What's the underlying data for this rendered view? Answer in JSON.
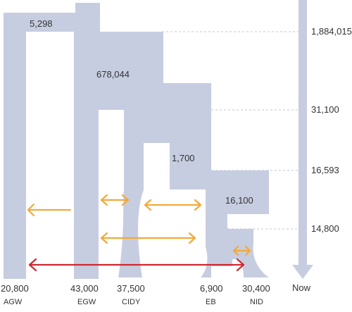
{
  "colors": {
    "tree": "#c7cde0",
    "migration": "#f2a93b",
    "recent": "#d0282e",
    "dashed": "#bfc6d9",
    "text": "#333333"
  },
  "inner_labels": {
    "root_ne": "5,298",
    "egw_ne": "678,044",
    "eb_nid_ne": "1,700",
    "nid_ne": "16,100"
  },
  "time_axis": {
    "labels": [
      "1,884,015",
      "31,100",
      "16,593",
      "14,800"
    ],
    "now_label": "Now"
  },
  "populations": [
    {
      "name": "AGW",
      "size": "20,800"
    },
    {
      "name": "EGW",
      "size": "43,000"
    },
    {
      "name": "CIDY",
      "size": "37,500"
    },
    {
      "name": "EB",
      "size": "6,900"
    },
    {
      "name": "NID",
      "size": "30,400"
    }
  ]
}
